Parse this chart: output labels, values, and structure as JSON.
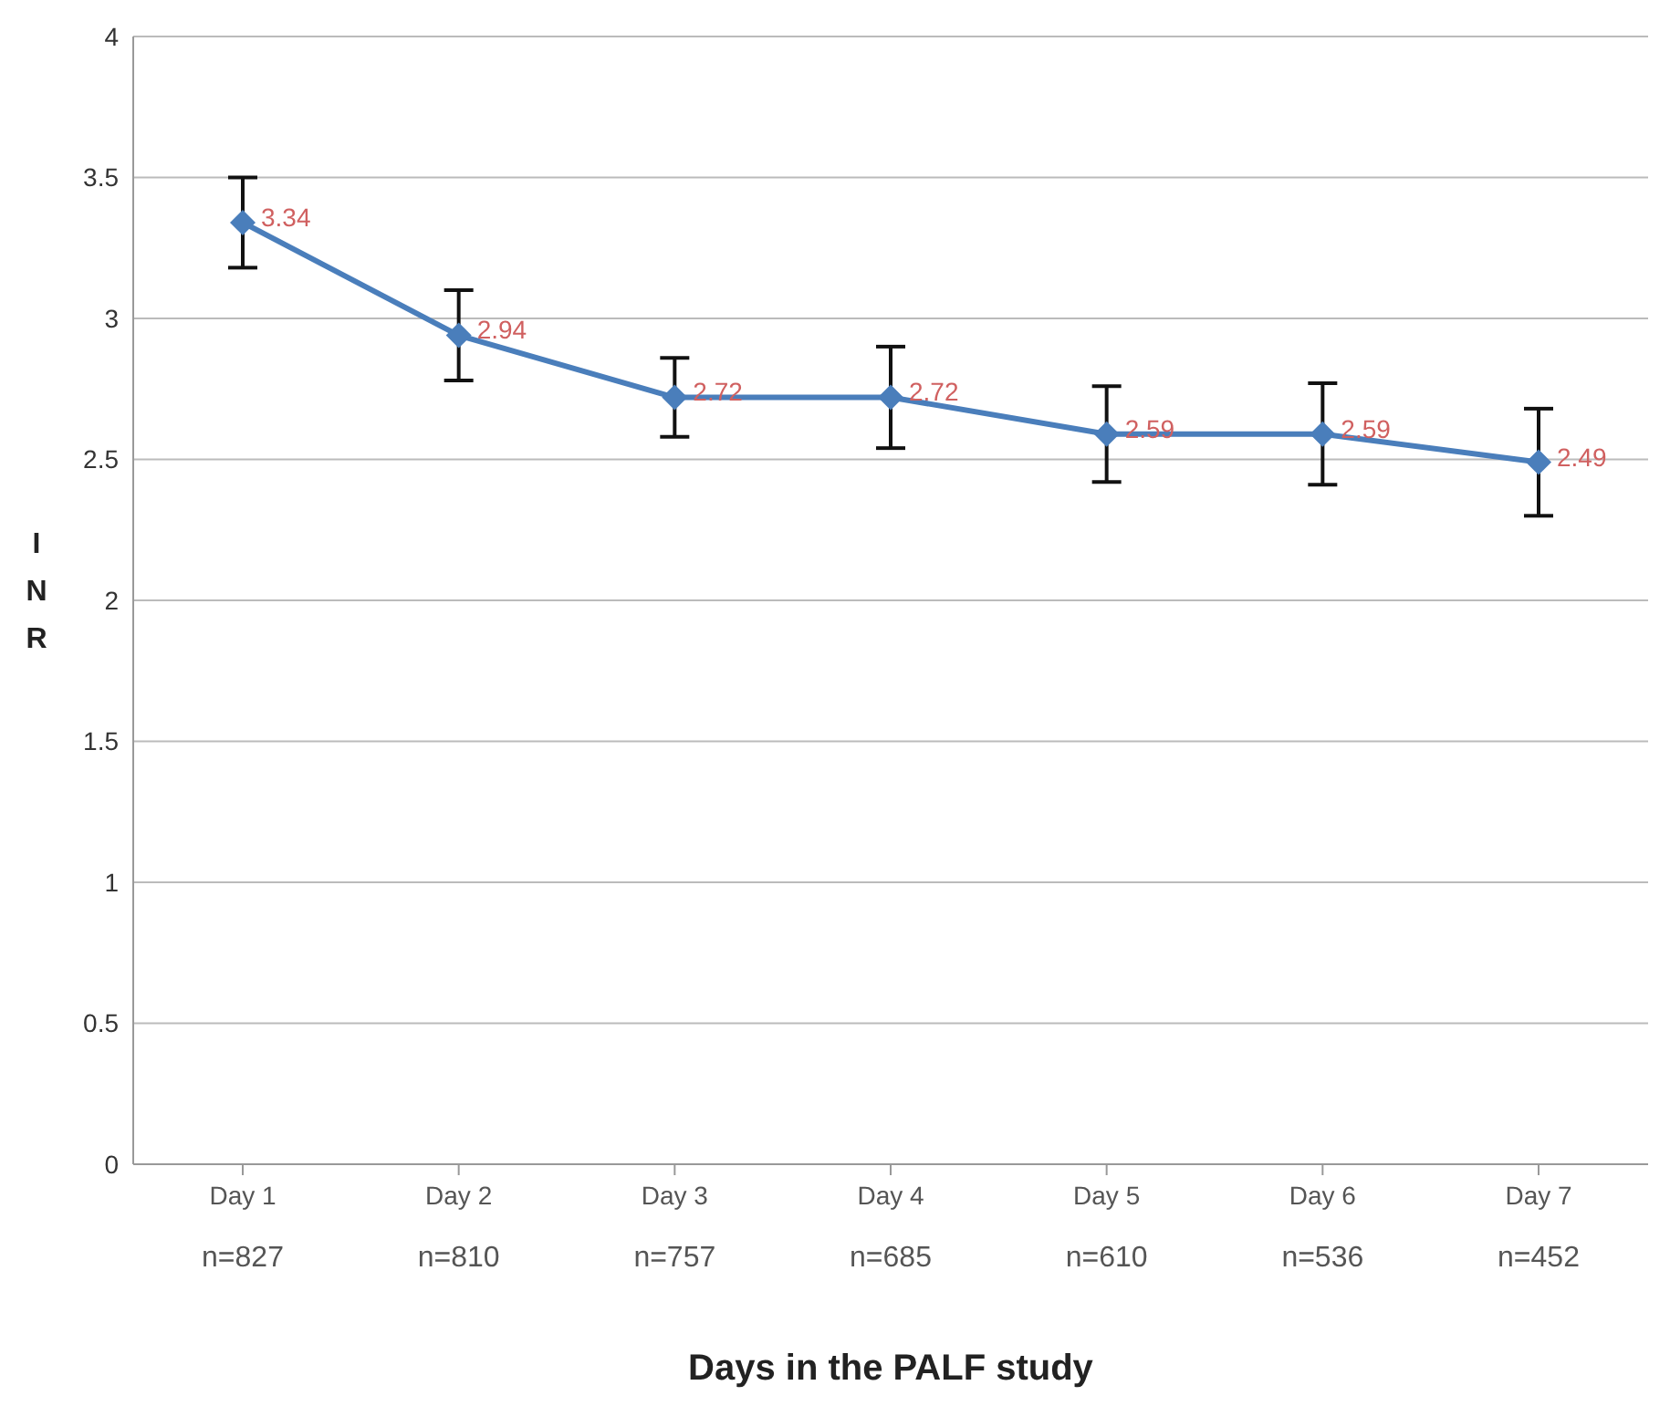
{
  "chart_data": {
    "type": "line",
    "ylabel": "INR",
    "xlabel": "Days in the PALF study",
    "categories": [
      "Day 1\nn=827",
      "Day 2\nn=810",
      "Day 3\nn=757",
      "Day 4\nn=685",
      "Day 5\nn=610",
      "Day 6\nn=536",
      "Day 7\nn=452"
    ],
    "series": [
      {
        "color": "#4a7ebb",
        "values": [
          3.34,
          2.94,
          2.72,
          2.72,
          2.59,
          2.59,
          2.49
        ],
        "errors": [
          0.16,
          0.16,
          0.14,
          0.18,
          0.17,
          0.18,
          0.19
        ]
      }
    ],
    "ylim": [
      0,
      4
    ],
    "yticks": [
      0,
      0.5,
      1,
      1.5,
      2,
      2.5,
      3,
      3.5,
      4
    ],
    "grid": "y",
    "marker": "diamond",
    "line_style": "solid",
    "data_labels": true,
    "legend": false
  }
}
